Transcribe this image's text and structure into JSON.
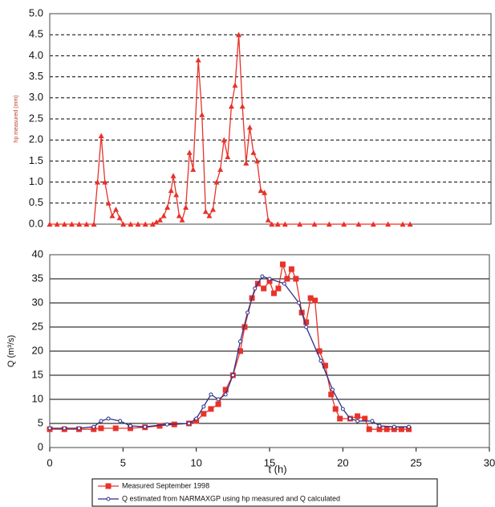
{
  "chart_data": [
    {
      "type": "line",
      "ylabel": "hp measured (mm)",
      "xlim": [
        0,
        30
      ],
      "ylim": [
        0,
        5
      ],
      "yticks": [
        {
          "value": 0,
          "label": "0.0"
        },
        {
          "value": 0.5,
          "label": "0.5"
        },
        {
          "value": 1,
          "label": "1.0"
        },
        {
          "value": 1.5,
          "label": "1.5"
        },
        {
          "value": 2,
          "label": "2.0"
        },
        {
          "value": 2.5,
          "label": "2.5"
        },
        {
          "value": 3,
          "label": "3.0"
        },
        {
          "value": 3.5,
          "label": "3.5"
        },
        {
          "value": 4,
          "label": "4.0"
        },
        {
          "value": 4.5,
          "label": "4.5"
        },
        {
          "value": 5,
          "label": "5.0"
        }
      ],
      "grid": "dashed",
      "series": [
        {
          "color": "#e8322a",
          "marker": "triangle",
          "x": [
            0,
            0.5,
            1,
            1.5,
            2,
            2.5,
            3,
            3.25,
            3.5,
            3.75,
            4,
            4.25,
            4.5,
            4.75,
            5,
            5.5,
            6,
            6.5,
            7,
            7.25,
            7.5,
            7.75,
            8,
            8.25,
            8.4,
            8.6,
            8.8,
            9,
            9.25,
            9.5,
            9.75,
            10.1,
            10.35,
            10.6,
            10.85,
            11.1,
            11.35,
            11.6,
            11.85,
            12.1,
            12.35,
            12.6,
            12.85,
            13.1,
            13.35,
            13.6,
            13.85,
            14.1,
            14.35,
            14.6,
            14.85,
            15.1,
            15.5,
            16,
            17,
            18,
            19,
            20,
            21,
            22,
            23,
            24,
            24.5
          ],
          "values": [
            0,
            0,
            0,
            0,
            0,
            0,
            0,
            1.0,
            2.1,
            1.0,
            0.5,
            0.2,
            0.35,
            0.15,
            0,
            0,
            0,
            0,
            0,
            0.05,
            0.1,
            0.2,
            0.4,
            0.8,
            1.15,
            0.7,
            0.2,
            0.1,
            0.4,
            1.7,
            1.3,
            3.9,
            2.6,
            0.3,
            0.2,
            0.35,
            1.0,
            1.3,
            2.0,
            1.6,
            2.8,
            3.3,
            4.5,
            2.8,
            1.45,
            2.3,
            1.7,
            1.5,
            0.8,
            0.75,
            0.1,
            0,
            0,
            0,
            0,
            0,
            0,
            0,
            0,
            0,
            0,
            0,
            0
          ]
        }
      ]
    },
    {
      "type": "line",
      "xlabel": "t (h)",
      "ylabel": "Q (m³/s)",
      "xlim": [
        0,
        30
      ],
      "ylim": [
        0,
        40
      ],
      "xticks": [
        0,
        5,
        10,
        15,
        20,
        25,
        30
      ],
      "yticks": [
        0,
        5,
        10,
        15,
        20,
        25,
        30,
        35,
        40
      ],
      "grid": "solid",
      "legend": "bottom",
      "series": [
        {
          "name": "Measured September 1998",
          "color": "#e8322a",
          "marker": "square",
          "x": [
            0,
            1,
            2,
            3,
            3.5,
            4.5,
            5.5,
            6.5,
            7.5,
            8.5,
            9.5,
            10,
            10.5,
            11,
            11.5,
            12,
            12.5,
            13,
            13.3,
            13.8,
            14.2,
            14.6,
            15,
            15.3,
            15.6,
            15.9,
            16.2,
            16.5,
            16.8,
            17.2,
            17.5,
            17.8,
            18.1,
            18.4,
            18.8,
            19.2,
            19.5,
            19.8,
            20.5,
            21,
            21.5,
            21.8,
            22.5,
            23,
            23.5,
            24,
            24.5
          ],
          "values": [
            3.8,
            3.8,
            3.8,
            3.8,
            4,
            4,
            4,
            4.2,
            4.5,
            4.8,
            5,
            5.5,
            7,
            8,
            9,
            12,
            15,
            20,
            25,
            31,
            34,
            33,
            34.5,
            32,
            33,
            38,
            35,
            37,
            35,
            28,
            26,
            31,
            30.5,
            20,
            17,
            11,
            8,
            6,
            6,
            6.5,
            6,
            3.8,
            3.8,
            3.8,
            3.8,
            3.8,
            3.8
          ]
        },
        {
          "name": "Q estimated from NARMAXGP using hp measured and Q calculated",
          "color": "#2b2f8a",
          "marker": "circle",
          "x": [
            0,
            1,
            2,
            3,
            3.5,
            4,
            4.8,
            5.5,
            6.5,
            8,
            9.5,
            10,
            10.5,
            11,
            11.5,
            12,
            12.5,
            13,
            13.5,
            14,
            14.5,
            15,
            16,
            17,
            17.5,
            18.5,
            19.3,
            20,
            20.5,
            21,
            22,
            22.5,
            23.5,
            24.5
          ],
          "values": [
            4,
            4,
            4,
            4.3,
            5.5,
            6,
            5.5,
            4.5,
            4.3,
            4.8,
            5,
            6,
            8.5,
            11,
            10,
            11,
            15,
            22,
            28,
            33,
            35.5,
            35,
            34,
            30,
            25,
            18,
            12,
            8,
            6,
            5.5,
            5.5,
            4.5,
            4.3,
            4.3
          ]
        }
      ]
    }
  ]
}
